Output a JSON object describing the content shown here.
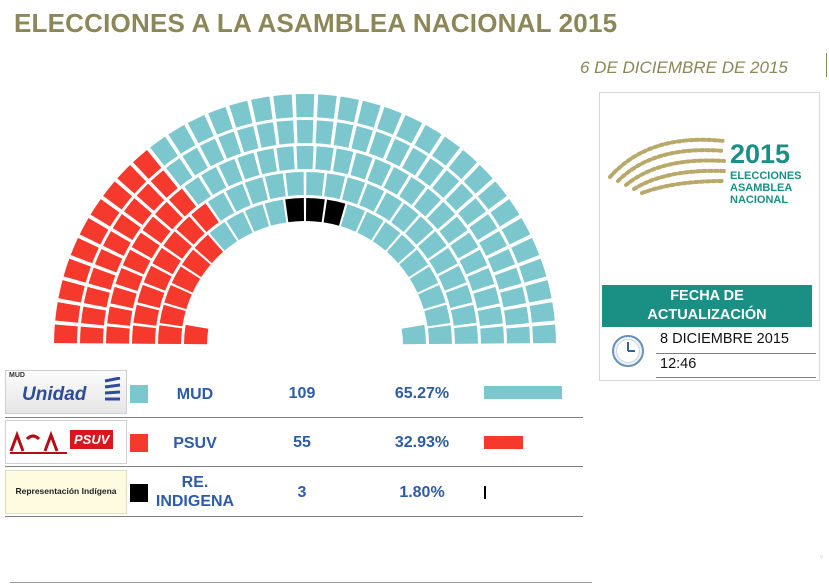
{
  "header": {
    "title": "ELECCIONES A LA ASAMBLEA NACIONAL 2015",
    "date": "6 DE DICIEMBRE DE 2015"
  },
  "logo": {
    "year": "2015",
    "line1": "ELECCIONES",
    "line2": "ASAMBLEA",
    "line3": "NACIONAL"
  },
  "update": {
    "label_line1": "FECHA DE",
    "label_line2": "ACTUALIZACIÓN",
    "date": "8 DICIEMBRE 2015",
    "time": "12:46"
  },
  "colors": {
    "mud": "#7cc7cd",
    "psuv": "#f5392c",
    "indigena": "#000000",
    "accent": "#1a8f84",
    "title": "#8c8758"
  },
  "parties": [
    {
      "key": "mud",
      "name": "MUD",
      "seats": "109",
      "pct": "65.27%",
      "pct_value": 65.27,
      "color": "#7cc7cd",
      "logo_text": "Unidad",
      "logo_small": "MUD"
    },
    {
      "key": "psuv",
      "name": "PSUV",
      "seats": "55",
      "pct": "32.93%",
      "pct_value": 32.93,
      "color": "#f5392c",
      "logo_text": "PSUV"
    },
    {
      "key": "indigena",
      "name_line1": "RE.",
      "name_line2": "INDIGENA",
      "seats": "3",
      "pct": "1.80%",
      "pct_value": 1.8,
      "color": "#000000",
      "logo_text": "Representación Indígena"
    }
  ]
}
